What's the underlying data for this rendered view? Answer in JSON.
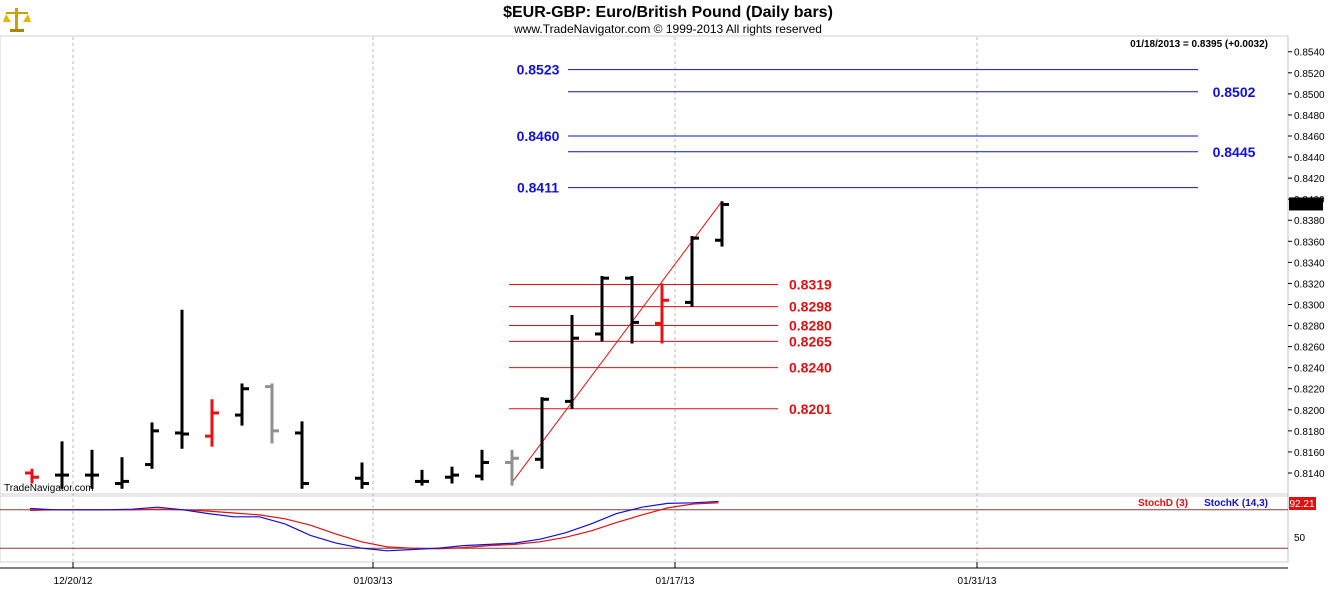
{
  "header": {
    "title": "$EUR-GBP:  Euro/British Pound  (Daily bars)",
    "subtitle": "www.TradeNavigator.com © 1999-2013 All rights reserved",
    "last_info": "01/18/2013 = 0.8395 (+0.0032)",
    "watermark": "TradeNavigator.com",
    "logo_icon": "scales-icon"
  },
  "colors": {
    "bar_black": "#000000",
    "bar_red": "#e81010",
    "bar_gray": "#909090",
    "blue": "#1010d0",
    "red": "#e01010"
  },
  "chart_data": {
    "type": "bar",
    "subtype": "ohlc",
    "price_axis": {
      "ylim": [
        0.8121,
        0.8554
      ],
      "ticks": [
        "0.8140",
        "0.8160",
        "0.8180",
        "0.8200",
        "0.8220",
        "0.8240",
        "0.8260",
        "0.8280",
        "0.8300",
        "0.8320",
        "0.8340",
        "0.8360",
        "0.8380",
        "0.8400",
        "0.8420",
        "0.8440",
        "0.8460",
        "0.8480",
        "0.8500",
        "0.8520",
        "0.8540"
      ],
      "last_price": "0.8395"
    },
    "x_axis": {
      "labels": [
        "12/20/12",
        "01/03/13",
        "01/17/13",
        "01/31/13"
      ]
    },
    "bars": [
      {
        "i": 0,
        "o": 0.814,
        "h": 0.8144,
        "l": 0.813,
        "c": 0.8136,
        "color": "red"
      },
      {
        "i": 1,
        "o": 0.8138,
        "h": 0.817,
        "l": 0.8125,
        "c": 0.8138,
        "color": "black"
      },
      {
        "i": 2,
        "o": 0.8138,
        "h": 0.8162,
        "l": 0.8125,
        "c": 0.8138,
        "color": "black"
      },
      {
        "i": 3,
        "o": 0.813,
        "h": 0.8155,
        "l": 0.8125,
        "c": 0.8132,
        "color": "black"
      },
      {
        "i": 4,
        "o": 0.8148,
        "h": 0.8188,
        "l": 0.8144,
        "c": 0.818,
        "color": "black"
      },
      {
        "i": 5,
        "o": 0.8178,
        "h": 0.8295,
        "l": 0.8163,
        "c": 0.8177,
        "color": "black"
      },
      {
        "i": 6,
        "o": 0.8175,
        "h": 0.821,
        "l": 0.8165,
        "c": 0.8197,
        "color": "red"
      },
      {
        "i": 7,
        "o": 0.8195,
        "h": 0.8225,
        "l": 0.8185,
        "c": 0.822,
        "color": "black"
      },
      {
        "i": 8,
        "o": 0.8222,
        "h": 0.8225,
        "l": 0.8168,
        "c": 0.818,
        "color": "gray"
      },
      {
        "i": 9,
        "o": 0.8178,
        "h": 0.8189,
        "l": 0.8125,
        "c": 0.813,
        "color": "black"
      },
      {
        "i": 11,
        "o": 0.8135,
        "h": 0.815,
        "l": 0.8125,
        "c": 0.813,
        "color": "black"
      },
      {
        "i": 13,
        "o": 0.8132,
        "h": 0.8143,
        "l": 0.8128,
        "c": 0.8132,
        "color": "black"
      },
      {
        "i": 14,
        "o": 0.8136,
        "h": 0.8146,
        "l": 0.813,
        "c": 0.8138,
        "color": "black"
      },
      {
        "i": 15,
        "o": 0.8137,
        "h": 0.8162,
        "l": 0.8133,
        "c": 0.815,
        "color": "black"
      },
      {
        "i": 16,
        "o": 0.815,
        "h": 0.8162,
        "l": 0.8128,
        "c": 0.8154,
        "color": "gray"
      },
      {
        "i": 17,
        "o": 0.8153,
        "h": 0.8212,
        "l": 0.8144,
        "c": 0.821,
        "color": "black"
      },
      {
        "i": 18,
        "o": 0.8208,
        "h": 0.829,
        "l": 0.8201,
        "c": 0.8268,
        "color": "black"
      },
      {
        "i": 19,
        "o": 0.8272,
        "h": 0.8327,
        "l": 0.8265,
        "c": 0.8325,
        "color": "black"
      },
      {
        "i": 20,
        "o": 0.8325,
        "h": 0.8327,
        "l": 0.8263,
        "c": 0.8283,
        "color": "black"
      },
      {
        "i": 21,
        "o": 0.8282,
        "h": 0.832,
        "l": 0.8263,
        "c": 0.8304,
        "color": "red"
      },
      {
        "i": 22,
        "o": 0.8302,
        "h": 0.8365,
        "l": 0.8298,
        "c": 0.8363,
        "color": "black"
      },
      {
        "i": 23,
        "o": 0.8361,
        "h": 0.8398,
        "l": 0.8355,
        "c": 0.8395,
        "color": "black"
      }
    ],
    "trendline": {
      "from": {
        "i": 16,
        "p": 0.8131
      },
      "to": {
        "i": 23,
        "p": 0.8398
      }
    },
    "blue_levels": [
      {
        "value": 0.8523,
        "label": "0.8523",
        "side": "left"
      },
      {
        "value": 0.8502,
        "label": "0.8502",
        "side": "right"
      },
      {
        "value": 0.846,
        "label": "0.8460",
        "side": "left"
      },
      {
        "value": 0.8445,
        "label": "0.8445",
        "side": "right"
      },
      {
        "value": 0.8411,
        "label": "0.8411",
        "side": "left"
      }
    ],
    "red_levels": [
      {
        "value": 0.8319,
        "label": "0.8319"
      },
      {
        "value": 0.8298,
        "label": "0.8298"
      },
      {
        "value": 0.828,
        "label": "0.8280"
      },
      {
        "value": 0.8265,
        "label": "0.8265"
      },
      {
        "value": 0.824,
        "label": "0.8240"
      },
      {
        "value": 0.8201,
        "label": "0.8201"
      }
    ],
    "stochastic": {
      "ylim": [
        0,
        100
      ],
      "legend_d": "StochD (3)",
      "legend_k": "StochK (14,3)",
      "last_value": "92.21",
      "tick": "50",
      "overbought": 80,
      "oversold": 20,
      "k": [
        82,
        80,
        80,
        80,
        81,
        84,
        80,
        74,
        69,
        69,
        58,
        40,
        28,
        20,
        16,
        18,
        20,
        24,
        26,
        28,
        34,
        44,
        58,
        74,
        84,
        90,
        91,
        93
      ],
      "d": [
        79,
        80,
        80,
        80,
        80,
        81,
        80,
        78,
        75,
        72,
        66,
        56,
        42,
        30,
        22,
        20,
        19,
        21,
        24,
        26,
        30,
        37,
        47,
        60,
        72,
        83,
        89,
        91
      ]
    }
  }
}
